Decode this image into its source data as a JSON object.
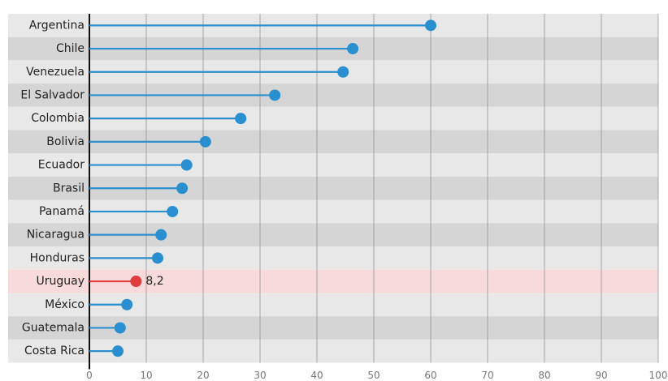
{
  "chart_data": {
    "type": "lollipop",
    "orientation": "horizontal",
    "categories": [
      "Argentina",
      "Chile",
      "Venezuela",
      "El Salvador",
      "Colombia",
      "Bolivia",
      "Ecuador",
      "Brasil",
      "Panamá",
      "Nicaragua",
      "Honduras",
      "Uruguay",
      "México",
      "Guatemala",
      "Costa Rica"
    ],
    "values": [
      60,
      46.3,
      44.6,
      32.6,
      26.6,
      20.4,
      17.1,
      16.3,
      14.6,
      12.6,
      12,
      8.2,
      6.6,
      5.4,
      5
    ],
    "value_labels": [
      null,
      null,
      null,
      null,
      null,
      null,
      null,
      null,
      null,
      null,
      null,
      "8,2",
      null,
      null,
      null
    ],
    "color": "#2a8fd0",
    "colors": [
      "#2a8fd0",
      "#2a8fd0",
      "#2a8fd0",
      "#2a8fd0",
      "#2a8fd0",
      "#2a8fd0",
      "#2a8fd0",
      "#2a8fd0",
      "#2a8fd0",
      "#2a8fd0",
      "#2a8fd0",
      "#e03c3c",
      "#2a8fd0",
      "#2a8fd0",
      "#2a8fd0"
    ],
    "xlim": [
      0,
      100
    ],
    "xticks": [
      0,
      10,
      20,
      30,
      40,
      50,
      60,
      70,
      80,
      90,
      100
    ],
    "grid": true
  }
}
